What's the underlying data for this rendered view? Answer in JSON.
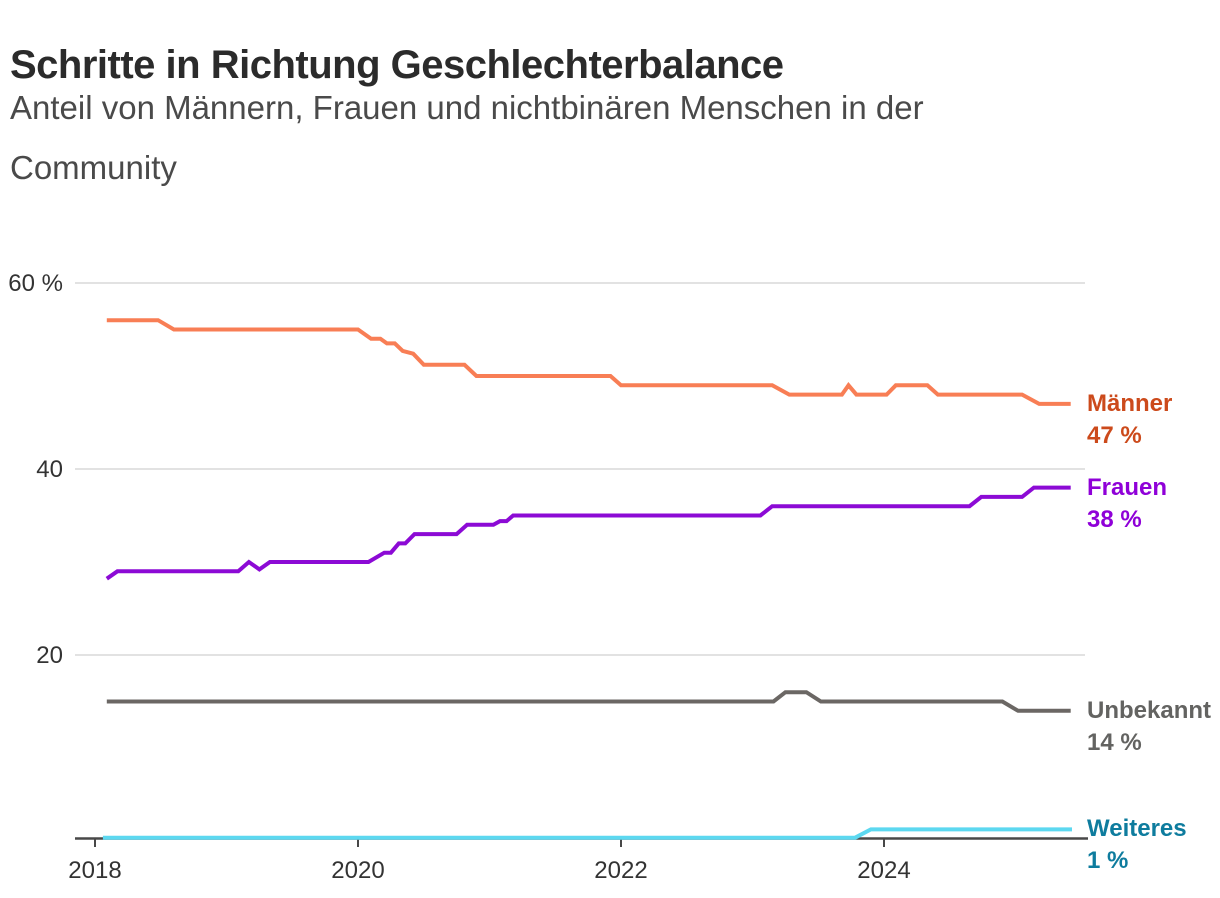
{
  "title": "Schritte in Richtung Geschlechterbalance",
  "subtitle": "Anteil von Männern, Frauen und nichtbinären Menschen in der Community",
  "colors": {
    "background": "#ffffff",
    "title_text": "#2b2b2b",
    "subtitle_text": "#4a4a4a",
    "gridline": "#d8d8d8",
    "axis_line": "#484848",
    "axis_tick_text": "#333333"
  },
  "chart_data": {
    "type": "line",
    "title": "Schritte in Richtung Geschlechterbalance",
    "subtitle": "Anteil von Männern, Frauen und nichtbinären Menschen in der Community",
    "xlabel": "",
    "ylabel": "%",
    "grid": "horizontal",
    "legend_position": "right-end-labels",
    "x_axis": {
      "range": [
        2017.85,
        2025.55
      ],
      "ticks": [
        {
          "value": 2018,
          "label": "2018"
        },
        {
          "value": 2020,
          "label": "2020"
        },
        {
          "value": 2022,
          "label": "2022"
        },
        {
          "value": 2024,
          "label": "2024"
        }
      ]
    },
    "y_axis": {
      "range": [
        0,
        63
      ],
      "unit": "%",
      "ticks": [
        {
          "value": 20,
          "label": "20"
        },
        {
          "value": 40,
          "label": "40"
        },
        {
          "value": 60,
          "label": "60 %"
        }
      ]
    },
    "series": [
      {
        "name": "Männer",
        "value_label": "47 %",
        "final_value": 47,
        "line_color": "#f87e55",
        "label_color": "#cc4a1b",
        "points": [
          [
            2018.09,
            56
          ],
          [
            2018.48,
            56
          ],
          [
            2018.6,
            55
          ],
          [
            2020.0,
            55
          ],
          [
            2020.1,
            54
          ],
          [
            2020.17,
            54
          ],
          [
            2020.22,
            53.5
          ],
          [
            2020.28,
            53.5
          ],
          [
            2020.34,
            52.7
          ],
          [
            2020.42,
            52.4
          ],
          [
            2020.5,
            51.2
          ],
          [
            2020.81,
            51.2
          ],
          [
            2020.9,
            50
          ],
          [
            2021.92,
            50
          ],
          [
            2022.0,
            49
          ],
          [
            2023.15,
            49
          ],
          [
            2023.28,
            48
          ],
          [
            2023.68,
            48
          ],
          [
            2023.73,
            49
          ],
          [
            2023.79,
            48
          ],
          [
            2024.02,
            48
          ],
          [
            2024.09,
            49
          ],
          [
            2024.33,
            49
          ],
          [
            2024.41,
            48
          ],
          [
            2025.05,
            48
          ],
          [
            2025.18,
            47
          ],
          [
            2025.42,
            47
          ]
        ]
      },
      {
        "name": "Frauen",
        "value_label": "38 %",
        "final_value": 38,
        "line_color": "#8c0ad5",
        "label_color": "#8f00d8",
        "points": [
          [
            2018.09,
            28.2
          ],
          [
            2018.17,
            29
          ],
          [
            2019.09,
            29
          ],
          [
            2019.17,
            30
          ],
          [
            2019.25,
            29.2
          ],
          [
            2019.33,
            30
          ],
          [
            2020.08,
            30
          ],
          [
            2020.2,
            31
          ],
          [
            2020.25,
            31
          ],
          [
            2020.31,
            32
          ],
          [
            2020.36,
            32
          ],
          [
            2020.43,
            33
          ],
          [
            2020.75,
            33
          ],
          [
            2020.83,
            34
          ],
          [
            2021.03,
            34
          ],
          [
            2021.08,
            34.4
          ],
          [
            2021.13,
            34.4
          ],
          [
            2021.18,
            35
          ],
          [
            2023.06,
            35
          ],
          [
            2023.15,
            36
          ],
          [
            2024.65,
            36
          ],
          [
            2024.74,
            37
          ],
          [
            2025.05,
            37
          ],
          [
            2025.14,
            38
          ],
          [
            2025.42,
            38
          ]
        ]
      },
      {
        "name": "Unbekannt",
        "value_label": "14 %",
        "final_value": 14,
        "line_color": "#6b6764",
        "label_color": "#636361",
        "points": [
          [
            2018.09,
            15
          ],
          [
            2023.16,
            15
          ],
          [
            2023.25,
            16
          ],
          [
            2023.41,
            16
          ],
          [
            2023.52,
            15
          ],
          [
            2024.9,
            15
          ],
          [
            2025.02,
            14
          ],
          [
            2025.42,
            14
          ]
        ]
      },
      {
        "name": "Weiteres",
        "value_label": "1 %",
        "final_value": 1,
        "line_color": "#5cd8f0",
        "label_color": "#0e7c9e",
        "points": [
          [
            2018.06,
            0.35
          ],
          [
            2023.78,
            0.35
          ],
          [
            2023.9,
            1.25
          ],
          [
            2025.43,
            1.25
          ]
        ]
      }
    ]
  }
}
